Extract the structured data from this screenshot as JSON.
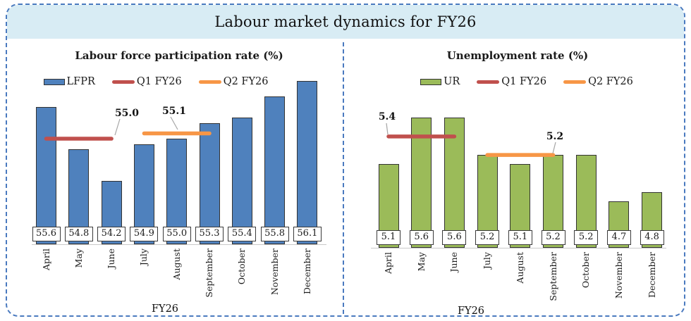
{
  "page_title": "Labour market dynamics for FY26",
  "colors": {
    "frame_border": "#4a7abf",
    "title_strip_bg": "#d8ecf4",
    "lfpr_bar": "#4F81BD",
    "ur_bar": "#9BBB59",
    "q1_line": "#C0504D",
    "q2_line": "#F79646",
    "bar_border": "#333333",
    "axis_line": "#c9c9c9",
    "leader_line": "#a6a6a6"
  },
  "chart_data": [
    {
      "type": "bar",
      "title": "Labour force participation rate (%)",
      "xlabel": "FY26",
      "categories": [
        "April",
        "May",
        "June",
        "July",
        "August",
        "September",
        "October",
        "November",
        "December"
      ],
      "series": [
        {
          "name": "LFPR",
          "color": "#4F81BD",
          "values": [
            55.6,
            54.8,
            54.2,
            54.9,
            55.0,
            55.3,
            55.4,
            55.8,
            56.1
          ]
        }
      ],
      "reference_lines": [
        {
          "name": "Q1 FY26",
          "value": 55.0,
          "span": [
            "April",
            "June"
          ],
          "color": "#C0504D"
        },
        {
          "name": "Q2 FY26",
          "value": 55.1,
          "span": [
            "July",
            "September"
          ],
          "color": "#F79646"
        }
      ],
      "ylim": [
        53.0,
        56.8
      ],
      "grid": false,
      "legend_position": "top",
      "data_labels": "boxed at bar base"
    },
    {
      "type": "bar",
      "title": "Unemployment rate (%)",
      "xlabel": "FY26",
      "categories": [
        "April",
        "May",
        "June",
        "July",
        "August",
        "September",
        "October",
        "November",
        "December"
      ],
      "series": [
        {
          "name": "UR",
          "color": "#9BBB59",
          "values": [
            5.1,
            5.6,
            5.6,
            5.2,
            5.1,
            5.2,
            5.2,
            4.7,
            4.8
          ]
        }
      ],
      "reference_lines": [
        {
          "name": "Q1 FY26",
          "value": 5.4,
          "span": [
            "April",
            "June"
          ],
          "color": "#C0504D"
        },
        {
          "name": "Q2 FY26",
          "value": 5.2,
          "span": [
            "July",
            "September"
          ],
          "color": "#F79646"
        }
      ],
      "ylim": [
        4.2,
        6.4
      ],
      "grid": false,
      "legend_position": "top",
      "data_labels": "boxed at bar base"
    }
  ]
}
